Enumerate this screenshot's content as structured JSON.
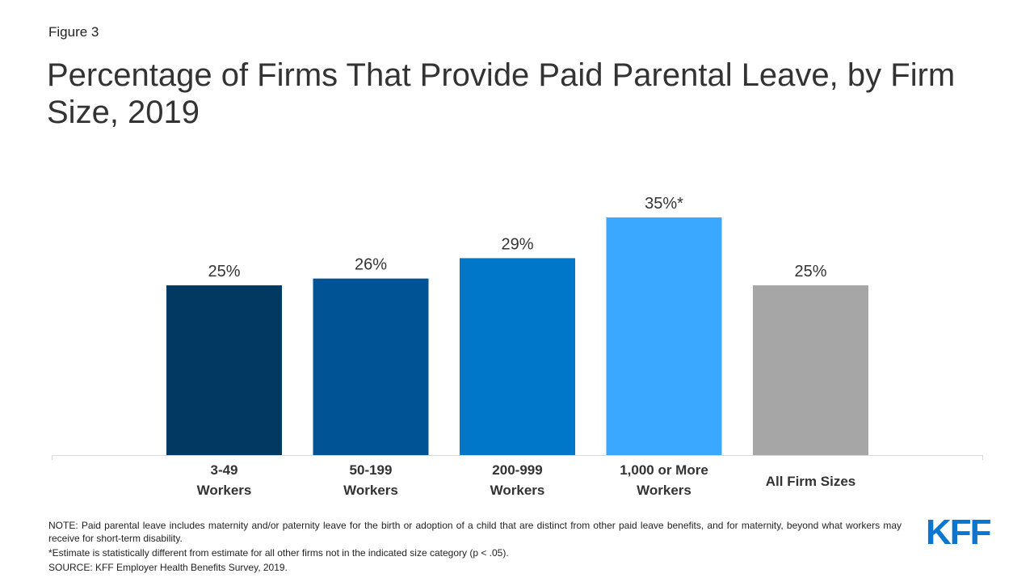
{
  "header": {
    "figure_label": "Figure 3",
    "title": "Percentage of Firms That Provide Paid Parental Leave, by Firm Size, 2019"
  },
  "chart_data": {
    "type": "bar",
    "title": "Percentage of Firms That Provide Paid Parental Leave, by Firm Size, 2019",
    "xlabel": "",
    "ylabel": "",
    "ylim": [
      0,
      40
    ],
    "grid": false,
    "categories": [
      [
        "3-49",
        "Workers"
      ],
      [
        "50-199",
        "Workers"
      ],
      [
        "200-999",
        "Workers"
      ],
      [
        "1,000 or More",
        "Workers"
      ],
      [
        "All Firm Sizes"
      ]
    ],
    "values": [
      25,
      26,
      29,
      35,
      25
    ],
    "data_labels": [
      "25%",
      "26%",
      "29%",
      "35%*",
      "25%"
    ],
    "colors": [
      "#003A63",
      "#005496",
      "#0077C8",
      "#3BA8FF",
      "#A6A6A6"
    ]
  },
  "notes": {
    "note": "NOTE: Paid parental leave includes maternity and/or paternity leave for the birth or adoption of a child that are distinct from other paid leave benefits, and for maternity, beyond what workers may receive for short-term disability.",
    "asterisk": "*Estimate is statistically different from estimate for all other firms not in the indicated size category (p < .05).",
    "source": "SOURCE: KFF Employer Health Benefits Survey, 2019."
  },
  "logo": {
    "text": "KFF",
    "color": "#0B76CF"
  }
}
